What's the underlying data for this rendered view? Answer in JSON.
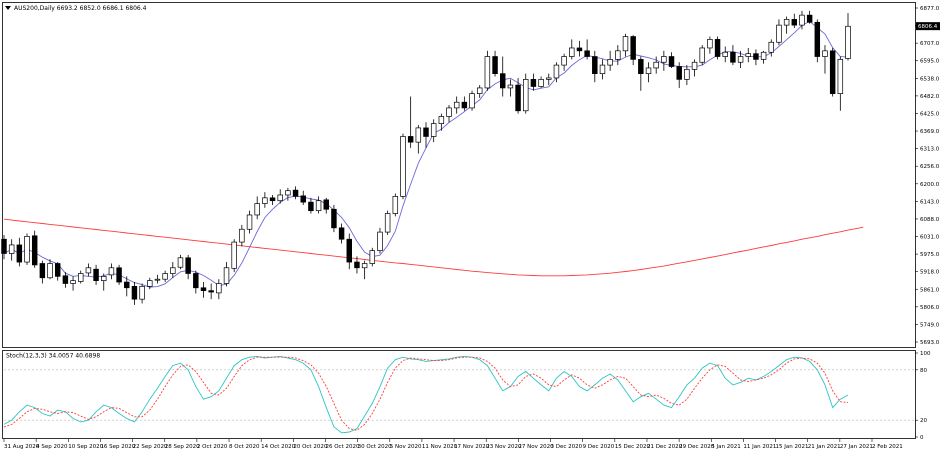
{
  "header": {
    "symbol_line": "AUS200,Daily  6693.2 6852.0 6686.1 6806.4",
    "menu_arrow": "triangle-down-icon"
  },
  "indicator": {
    "label": "Stoch(12,3,3) 34.0057 40.6898",
    "levels": [
      "100",
      "80",
      "20",
      "0"
    ]
  },
  "colors": {
    "background": "#ffffff",
    "ma_slow": "#ff3b3b",
    "ma_fast": "#6a6ad8",
    "stoch_main": "#2ec4c4",
    "stoch_signal": "#ff3b3b",
    "candle_up_fill": "#ffffff",
    "candle_down_fill": "#000000",
    "price_tag": "#000000"
  },
  "chart_data": [
    {
      "type": "candlestick",
      "symbol": "AUS200",
      "timeframe": "Daily",
      "last_price": "6806.4",
      "price_axis": {
        "ticks": [
          "6877.0",
          "6763.0",
          "6707.0",
          "6595.0",
          "6538.0",
          "6482.0",
          "6425.0",
          "6369.0",
          "6313.0",
          "6256.0",
          "6200.0",
          "6143.0",
          "6088.0",
          "6031.0",
          "5975.0",
          "5918.0",
          "5861.0",
          "5806.0",
          "5749.0",
          "5693.0"
        ],
        "ylim": [
          5693,
          6877
        ]
      },
      "date_axis": {
        "ticks": [
          "31 Aug 2020",
          "4 Sep 2020",
          "10 Sep 2020",
          "16 Sep 2020",
          "22 Sep 2020",
          "28 Sep 2020",
          "2 Oct 2020",
          "8 Oct 2020",
          "14 Oct 2020",
          "20 Oct 2020",
          "26 Oct 2020",
          "30 Oct 2020",
          "5 Nov 2020",
          "11 Nov 2020",
          "17 Nov 2020",
          "23 Nov 2020",
          "27 Nov 2020",
          "3 Dec 2020",
          "9 Dec 2020",
          "15 Dec 2020",
          "21 Dec 2020",
          "29 Dec 2020",
          "5 Jan 2021",
          "11 Jan 2021",
          "15 Jan 2021",
          "21 Jan 2021",
          "27 Jan 2021",
          "2 Feb 2021"
        ]
      },
      "candles": [
        {
          "o": 6060,
          "h": 6075,
          "l": 5990,
          "c": 6010
        },
        {
          "o": 6010,
          "h": 6060,
          "l": 5985,
          "c": 6040
        },
        {
          "o": 6040,
          "h": 6065,
          "l": 5965,
          "c": 5980
        },
        {
          "o": 5980,
          "h": 6080,
          "l": 5970,
          "c": 6070
        },
        {
          "o": 6072,
          "h": 6090,
          "l": 5960,
          "c": 5970
        },
        {
          "o": 5975,
          "h": 5985,
          "l": 5905,
          "c": 5925
        },
        {
          "o": 5925,
          "h": 5990,
          "l": 5920,
          "c": 5975
        },
        {
          "o": 5975,
          "h": 5980,
          "l": 5915,
          "c": 5930
        },
        {
          "o": 5932,
          "h": 5945,
          "l": 5890,
          "c": 5905
        },
        {
          "o": 5905,
          "h": 5930,
          "l": 5880,
          "c": 5915
        },
        {
          "o": 5912,
          "h": 5950,
          "l": 5905,
          "c": 5940
        },
        {
          "o": 5942,
          "h": 5975,
          "l": 5930,
          "c": 5960
        },
        {
          "o": 5955,
          "h": 5970,
          "l": 5900,
          "c": 5915
        },
        {
          "o": 5915,
          "h": 5940,
          "l": 5880,
          "c": 5930
        },
        {
          "o": 5935,
          "h": 5975,
          "l": 5920,
          "c": 5960
        },
        {
          "o": 5960,
          "h": 5970,
          "l": 5900,
          "c": 5910
        },
        {
          "o": 5910,
          "h": 5930,
          "l": 5860,
          "c": 5890
        },
        {
          "o": 5895,
          "h": 5910,
          "l": 5830,
          "c": 5850
        },
        {
          "o": 5850,
          "h": 5905,
          "l": 5835,
          "c": 5895
        },
        {
          "o": 5895,
          "h": 5925,
          "l": 5885,
          "c": 5915
        },
        {
          "o": 5918,
          "h": 5935,
          "l": 5905,
          "c": 5920
        },
        {
          "o": 5920,
          "h": 5950,
          "l": 5910,
          "c": 5940
        },
        {
          "o": 5940,
          "h": 5980,
          "l": 5925,
          "c": 5960
        },
        {
          "o": 5962,
          "h": 6005,
          "l": 5955,
          "c": 5995
        },
        {
          "o": 5995,
          "h": 6005,
          "l": 5920,
          "c": 5940
        },
        {
          "o": 5940,
          "h": 5950,
          "l": 5870,
          "c": 5890
        },
        {
          "o": 5890,
          "h": 5910,
          "l": 5855,
          "c": 5880
        },
        {
          "o": 5880,
          "h": 5905,
          "l": 5850,
          "c": 5875
        },
        {
          "o": 5872,
          "h": 5920,
          "l": 5850,
          "c": 5905
        },
        {
          "o": 5905,
          "h": 5980,
          "l": 5895,
          "c": 5960
        },
        {
          "o": 5958,
          "h": 6060,
          "l": 5945,
          "c": 6050
        },
        {
          "o": 6050,
          "h": 6110,
          "l": 6035,
          "c": 6095
        },
        {
          "o": 6095,
          "h": 6160,
          "l": 6080,
          "c": 6145
        },
        {
          "o": 6145,
          "h": 6210,
          "l": 6130,
          "c": 6185
        },
        {
          "o": 6185,
          "h": 6225,
          "l": 6170,
          "c": 6205
        },
        {
          "o": 6205,
          "h": 6215,
          "l": 6180,
          "c": 6195
        },
        {
          "o": 6195,
          "h": 6235,
          "l": 6185,
          "c": 6215
        },
        {
          "o": 6215,
          "h": 6240,
          "l": 6195,
          "c": 6230
        },
        {
          "o": 6232,
          "h": 6245,
          "l": 6200,
          "c": 6210
        },
        {
          "o": 6212,
          "h": 6230,
          "l": 6180,
          "c": 6190
        },
        {
          "o": 6190,
          "h": 6205,
          "l": 6150,
          "c": 6160
        },
        {
          "o": 6160,
          "h": 6210,
          "l": 6150,
          "c": 6195
        },
        {
          "o": 6198,
          "h": 6205,
          "l": 6150,
          "c": 6165
        },
        {
          "o": 6165,
          "h": 6180,
          "l": 6085,
          "c": 6100
        },
        {
          "o": 6100,
          "h": 6115,
          "l": 6045,
          "c": 6060
        },
        {
          "o": 6060,
          "h": 6080,
          "l": 5955,
          "c": 5980
        },
        {
          "o": 5980,
          "h": 6000,
          "l": 5940,
          "c": 5960
        },
        {
          "o": 5960,
          "h": 5985,
          "l": 5920,
          "c": 5975
        },
        {
          "o": 5975,
          "h": 6030,
          "l": 5965,
          "c": 6020
        },
        {
          "o": 6020,
          "h": 6100,
          "l": 6010,
          "c": 6085
        },
        {
          "o": 6085,
          "h": 6160,
          "l": 6075,
          "c": 6150
        },
        {
          "o": 6150,
          "h": 6220,
          "l": 6140,
          "c": 6210
        },
        {
          "o": 6210,
          "h": 6430,
          "l": 6200,
          "c": 6420
        },
        {
          "o": 6420,
          "h": 6560,
          "l": 6380,
          "c": 6400
        },
        {
          "o": 6400,
          "h": 6460,
          "l": 6360,
          "c": 6450
        },
        {
          "o": 6450,
          "h": 6470,
          "l": 6380,
          "c": 6420
        },
        {
          "o": 6420,
          "h": 6480,
          "l": 6400,
          "c": 6465
        },
        {
          "o": 6465,
          "h": 6500,
          "l": 6440,
          "c": 6490
        },
        {
          "o": 6490,
          "h": 6530,
          "l": 6470,
          "c": 6520
        },
        {
          "o": 6520,
          "h": 6560,
          "l": 6500,
          "c": 6540
        },
        {
          "o": 6540,
          "h": 6560,
          "l": 6510,
          "c": 6520
        },
        {
          "o": 6520,
          "h": 6580,
          "l": 6510,
          "c": 6570
        },
        {
          "o": 6570,
          "h": 6600,
          "l": 6555,
          "c": 6590
        },
        {
          "o": 6590,
          "h": 6720,
          "l": 6580,
          "c": 6700
        },
        {
          "o": 6700,
          "h": 6720,
          "l": 6630,
          "c": 6640
        },
        {
          "o": 6640,
          "h": 6700,
          "l": 6560,
          "c": 6590
        },
        {
          "o": 6590,
          "h": 6620,
          "l": 6560,
          "c": 6600
        },
        {
          "o": 6600,
          "h": 6625,
          "l": 6500,
          "c": 6510
        },
        {
          "o": 6510,
          "h": 6640,
          "l": 6500,
          "c": 6620
        },
        {
          "o": 6620,
          "h": 6640,
          "l": 6580,
          "c": 6595
        },
        {
          "o": 6595,
          "h": 6630,
          "l": 6590,
          "c": 6620
        },
        {
          "o": 6620,
          "h": 6640,
          "l": 6600,
          "c": 6625
        },
        {
          "o": 6625,
          "h": 6680,
          "l": 6610,
          "c": 6670
        },
        {
          "o": 6670,
          "h": 6710,
          "l": 6650,
          "c": 6700
        },
        {
          "o": 6700,
          "h": 6760,
          "l": 6690,
          "c": 6730
        },
        {
          "o": 6730,
          "h": 6755,
          "l": 6700,
          "c": 6720
        },
        {
          "o": 6720,
          "h": 6760,
          "l": 6690,
          "c": 6700
        },
        {
          "o": 6700,
          "h": 6720,
          "l": 6610,
          "c": 6640
        },
        {
          "o": 6640,
          "h": 6690,
          "l": 6620,
          "c": 6670
        },
        {
          "o": 6670,
          "h": 6720,
          "l": 6650,
          "c": 6690
        },
        {
          "o": 6690,
          "h": 6740,
          "l": 6670,
          "c": 6720
        },
        {
          "o": 6720,
          "h": 6780,
          "l": 6700,
          "c": 6770
        },
        {
          "o": 6770,
          "h": 6775,
          "l": 6670,
          "c": 6690
        },
        {
          "o": 6690,
          "h": 6700,
          "l": 6580,
          "c": 6640
        },
        {
          "o": 6640,
          "h": 6680,
          "l": 6610,
          "c": 6660
        },
        {
          "o": 6660,
          "h": 6700,
          "l": 6640,
          "c": 6680
        },
        {
          "o": 6680,
          "h": 6720,
          "l": 6650,
          "c": 6700
        },
        {
          "o": 6700,
          "h": 6715,
          "l": 6660,
          "c": 6665
        },
        {
          "o": 6665,
          "h": 6680,
          "l": 6590,
          "c": 6620
        },
        {
          "o": 6620,
          "h": 6670,
          "l": 6600,
          "c": 6655
        },
        {
          "o": 6655,
          "h": 6690,
          "l": 6630,
          "c": 6680
        },
        {
          "o": 6680,
          "h": 6740,
          "l": 6670,
          "c": 6730
        },
        {
          "o": 6730,
          "h": 6770,
          "l": 6710,
          "c": 6760
        },
        {
          "o": 6760,
          "h": 6770,
          "l": 6690,
          "c": 6700
        },
        {
          "o": 6700,
          "h": 6735,
          "l": 6680,
          "c": 6715
        },
        {
          "o": 6715,
          "h": 6740,
          "l": 6670,
          "c": 6680
        },
        {
          "o": 6680,
          "h": 6720,
          "l": 6660,
          "c": 6700
        },
        {
          "o": 6700,
          "h": 6730,
          "l": 6680,
          "c": 6710
        },
        {
          "o": 6710,
          "h": 6725,
          "l": 6670,
          "c": 6690
        },
        {
          "o": 6690,
          "h": 6720,
          "l": 6675,
          "c": 6715
        },
        {
          "o": 6715,
          "h": 6760,
          "l": 6700,
          "c": 6750
        },
        {
          "o": 6750,
          "h": 6830,
          "l": 6740,
          "c": 6810
        },
        {
          "o": 6810,
          "h": 6840,
          "l": 6780,
          "c": 6830
        },
        {
          "o": 6830,
          "h": 6850,
          "l": 6800,
          "c": 6810
        },
        {
          "o": 6810,
          "h": 6860,
          "l": 6795,
          "c": 6845
        },
        {
          "o": 6845,
          "h": 6860,
          "l": 6815,
          "c": 6820
        },
        {
          "o": 6820,
          "h": 6830,
          "l": 6680,
          "c": 6700
        },
        {
          "o": 6700,
          "h": 6740,
          "l": 6640,
          "c": 6720
        },
        {
          "o": 6720,
          "h": 6730,
          "l": 6560,
          "c": 6570
        },
        {
          "o": 6570,
          "h": 6700,
          "l": 6510,
          "c": 6690
        },
        {
          "o": 6693,
          "h": 6852,
          "l": 6686,
          "c": 6806
        }
      ],
      "ma_slow": [
        6130,
        6127,
        6124,
        6121,
        6118,
        6115,
        6112,
        6109,
        6106,
        6103,
        6100,
        6097,
        6094,
        6091,
        6088,
        6085,
        6082,
        6079,
        6076,
        6073,
        6070,
        6067,
        6064,
        6061,
        6058,
        6055,
        6052,
        6049,
        6046,
        6043,
        6040,
        6037,
        6034,
        6031,
        6028,
        6025,
        6022,
        6019,
        6016,
        6013,
        6010,
        6007,
        6004,
        6001,
        5998,
        5995,
        5992,
        5989,
        5986,
        5983,
        5980,
        5977,
        5975,
        5972,
        5969,
        5966,
        5963,
        5960,
        5957,
        5954,
        5951,
        5948,
        5946,
        5943,
        5941,
        5939,
        5937,
        5935,
        5934,
        5933,
        5932,
        5932,
        5932,
        5932,
        5933,
        5934,
        5935,
        5937,
        5939,
        5941,
        5944,
        5947,
        5950,
        5954,
        5958,
        5962,
        5966,
        5971,
        5976,
        5981,
        5986,
        5991,
        5996,
        6001,
        6006,
        6012,
        6017,
        6022,
        6028,
        6033,
        6038,
        6044,
        6049,
        6054,
        6060,
        6065,
        6070,
        6076,
        6081,
        6086,
        6092,
        6097,
        6102
      ],
      "ma_fast_period": "short",
      "stochastic": {
        "name": "Stoch(12,3,3)",
        "main_last": 34.0057,
        "signal_last": 40.6898,
        "levels": [
          100,
          80,
          20,
          0
        ],
        "main": [
          15,
          20,
          30,
          38,
          35,
          28,
          25,
          32,
          30,
          22,
          18,
          20,
          30,
          38,
          35,
          28,
          22,
          18,
          30,
          45,
          58,
          72,
          85,
          88,
          80,
          60,
          45,
          48,
          55,
          70,
          85,
          92,
          95,
          96,
          94,
          95,
          96,
          94,
          92,
          88,
          80,
          60,
          35,
          12,
          5,
          6,
          10,
          25,
          40,
          60,
          82,
          92,
          95,
          93,
          92,
          90,
          91,
          92,
          93,
          95,
          96,
          95,
          92,
          85,
          70,
          55,
          60,
          72,
          78,
          70,
          62,
          55,
          70,
          78,
          72,
          60,
          55,
          62,
          70,
          75,
          68,
          55,
          42,
          48,
          52,
          45,
          38,
          35,
          48,
          62,
          70,
          82,
          88,
          85,
          70,
          62,
          65,
          70,
          68,
          72,
          78,
          85,
          92,
          95,
          94,
          90,
          80,
          62,
          35,
          45,
          50
        ],
        "signal": [
          12,
          15,
          22,
          30,
          34,
          33,
          30,
          28,
          30,
          29,
          25,
          21,
          24,
          30,
          35,
          34,
          29,
          24,
          24,
          32,
          45,
          60,
          74,
          84,
          86,
          78,
          65,
          52,
          50,
          58,
          72,
          85,
          92,
          95,
          95,
          95,
          95,
          95,
          94,
          91,
          86,
          76,
          60,
          40,
          20,
          10,
          8,
          15,
          28,
          45,
          65,
          82,
          91,
          94,
          93,
          92,
          91,
          91,
          92,
          94,
          95,
          95,
          94,
          90,
          82,
          68,
          60,
          62,
          72,
          75,
          70,
          62,
          60,
          68,
          74,
          70,
          62,
          58,
          62,
          68,
          72,
          70,
          60,
          50,
          48,
          50,
          46,
          40,
          38,
          45,
          58,
          70,
          80,
          86,
          84,
          76,
          68,
          66,
          68,
          70,
          74,
          80,
          88,
          93,
          94,
          93,
          88,
          76,
          55,
          42,
          41
        ]
      }
    }
  ]
}
